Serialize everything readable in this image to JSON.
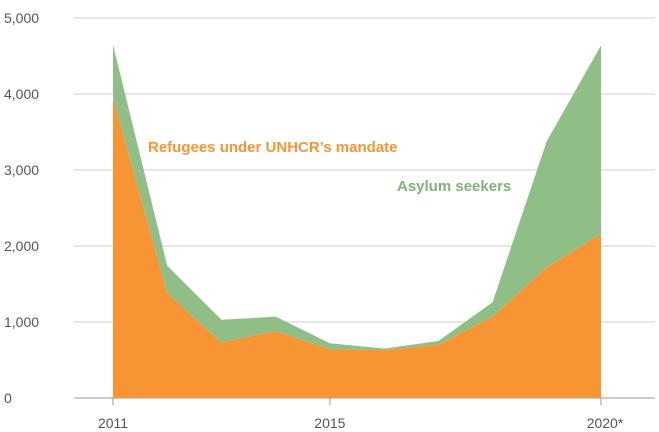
{
  "chart_data": {
    "type": "area",
    "stacked": true,
    "x": [
      "2011",
      "2012",
      "2013",
      "2014",
      "2015",
      "2016",
      "2017",
      "2018",
      "2019",
      "2020*"
    ],
    "x_tick_labels": [
      "2011",
      "2015",
      "2020*"
    ],
    "y_tick_labels": [
      "0",
      "1,000",
      "2,000",
      "3,000",
      "4,000",
      "5,000"
    ],
    "ylim": [
      0,
      5000
    ],
    "grid": "horizontal",
    "series": [
      {
        "name": "Refugees under UNHCR’s mandate",
        "color": "#f79433",
        "values": [
          3950,
          1380,
          730,
          880,
          640,
          630,
          700,
          1070,
          1720,
          2160
        ]
      },
      {
        "name": "Asylum seekers",
        "color": "#8fbf87",
        "values": [
          700,
          360,
          300,
          190,
          80,
          20,
          50,
          190,
          1660,
          2480
        ]
      }
    ]
  }
}
